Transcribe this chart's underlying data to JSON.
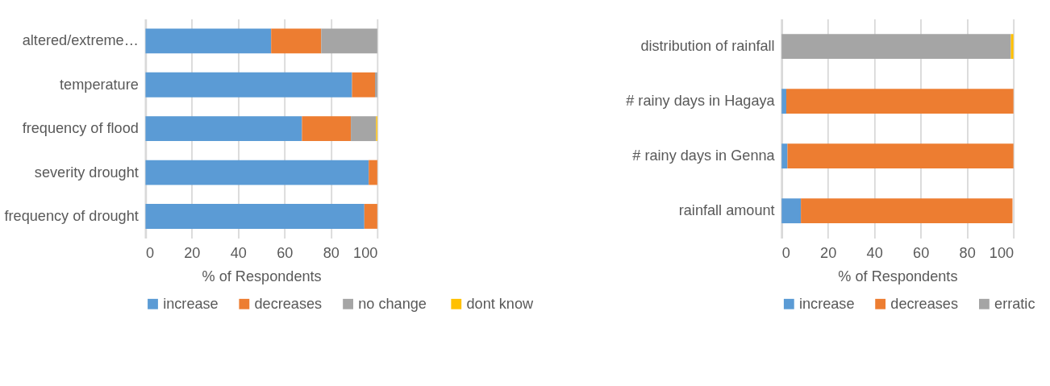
{
  "chart_data": [
    {
      "type": "bar",
      "orientation": "horizontal",
      "stacked": true,
      "categories": [
        "altered/extreme…",
        "temperature",
        "frequency of flood",
        "severity drought",
        "frequency of drought"
      ],
      "series": [
        {
          "name": "increase",
          "color": "#5b9bd5",
          "values": [
            54.2,
            89.1,
            67.5,
            96.3,
            94.4
          ]
        },
        {
          "name": "decreases",
          "color": "#ed7d31",
          "values": [
            21.6,
            9.9,
            21.1,
            3.7,
            5.6
          ]
        },
        {
          "name": "no  change",
          "color": "#a5a5a5",
          "values": [
            24.2,
            1.0,
            10.9,
            0,
            0
          ]
        },
        {
          "name": "dont  know",
          "color": "#ffc000",
          "values": [
            0,
            0,
            0.5,
            0,
            0
          ]
        }
      ],
      "xlabel": "% of Respondents",
      "xlim": [
        0,
        100
      ],
      "xticks": [
        0,
        20,
        40,
        60,
        80,
        100
      ],
      "grid": "x",
      "legend": "bottom"
    },
    {
      "type": "bar",
      "orientation": "horizontal",
      "stacked": true,
      "categories": [
        "distribution of rainfall",
        "# rainy days in Hagaya",
        "# rainy days in Genna",
        "rainfall amount"
      ],
      "series": [
        {
          "name": "increase",
          "color": "#5b9bd5",
          "values": [
            0,
            2.0,
            2.5,
            8.3
          ]
        },
        {
          "name": "decreases",
          "color": "#ed7d31",
          "values": [
            0,
            98.0,
            97.5,
            91.3
          ]
        },
        {
          "name": "erratic",
          "color": "#a5a5a5",
          "values": [
            98.9,
            0,
            0,
            0
          ]
        },
        {
          "color": "#ffc000",
          "values": [
            1.1,
            0,
            0,
            0
          ]
        }
      ],
      "xlabel": "% of Respondents",
      "xlim": [
        0,
        100
      ],
      "xticks": [
        0,
        20,
        40,
        60,
        80,
        100
      ],
      "grid": "x",
      "legend": "bottom"
    }
  ]
}
